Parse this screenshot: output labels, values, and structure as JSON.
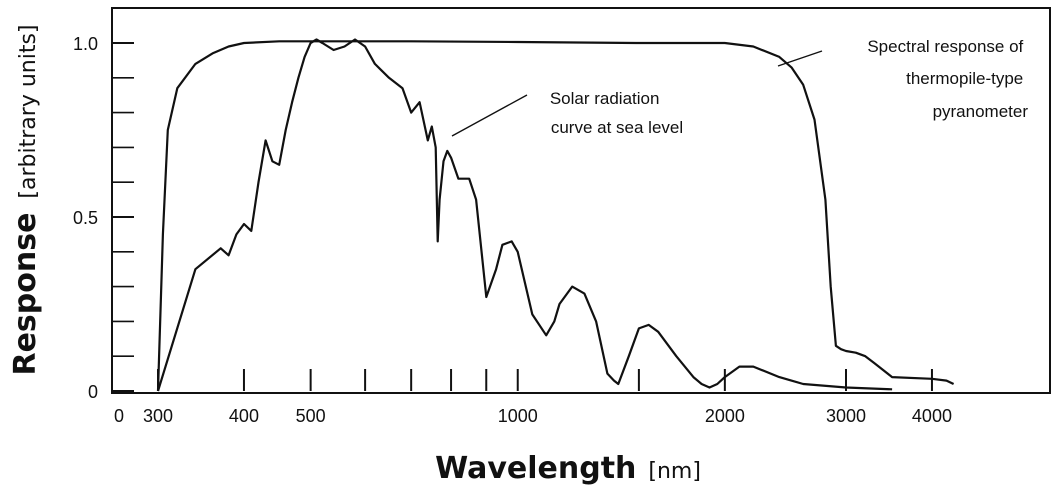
{
  "chart_data": {
    "type": "line",
    "title": "",
    "xlabel": "Wavelength",
    "xlabel_unit": "[nm]",
    "ylabel": "Response",
    "ylabel_unit": "[arbitrary units]",
    "x_scale": "log",
    "xlim": [
      280,
      6000
    ],
    "ylim": [
      0,
      1.0
    ],
    "grid": false,
    "legend": "none",
    "x_ticks_labeled": [
      {
        "value": 300,
        "label": "300"
      },
      {
        "value": 400,
        "label": "400"
      },
      {
        "value": 500,
        "label": "500"
      },
      {
        "value": 1000,
        "label": "1000"
      },
      {
        "value": 2000,
        "label": "2000"
      },
      {
        "value": 3000,
        "label": "3000"
      },
      {
        "value": 4000,
        "label": "4000"
      }
    ],
    "x_origin_label": "0",
    "x_ticks_minor": [
      600,
      700,
      800,
      900,
      1500
    ],
    "y_ticks_labeled": [
      {
        "value": 0,
        "label": "0"
      },
      {
        "value": 0.5,
        "label": "0.5"
      },
      {
        "value": 1.0,
        "label": "1.0"
      }
    ],
    "y_ticks_minor": [
      0.1,
      0.2,
      0.3,
      0.4,
      0.6,
      0.7,
      0.8,
      0.9
    ],
    "series": [
      {
        "id": "solar",
        "annotation": "Solar radiation curve at sea level",
        "annotation_lines": [
          "Solar radiation",
          "curve at sea level"
        ],
        "x": [
          300,
          340,
          370,
          380,
          390,
          400,
          410,
          420,
          430,
          440,
          450,
          460,
          470,
          480,
          490,
          500,
          510,
          520,
          540,
          560,
          580,
          600,
          620,
          650,
          680,
          700,
          720,
          740,
          750,
          760,
          765,
          770,
          780,
          790,
          800,
          820,
          850,
          870,
          900,
          930,
          950,
          980,
          1000,
          1050,
          1100,
          1130,
          1150,
          1200,
          1250,
          1300,
          1350,
          1380,
          1400,
          1450,
          1500,
          1550,
          1600,
          1700,
          1800,
          1850,
          1900,
          1950,
          2000,
          2100,
          2200,
          2400,
          2600,
          3000,
          3500
        ],
        "y": [
          0.0,
          0.35,
          0.41,
          0.39,
          0.45,
          0.48,
          0.46,
          0.6,
          0.72,
          0.66,
          0.65,
          0.75,
          0.83,
          0.9,
          0.96,
          1.0,
          1.01,
          1.0,
          0.98,
          0.99,
          1.01,
          0.99,
          0.94,
          0.9,
          0.87,
          0.8,
          0.83,
          0.72,
          0.76,
          0.7,
          0.43,
          0.55,
          0.66,
          0.69,
          0.67,
          0.61,
          0.61,
          0.55,
          0.27,
          0.35,
          0.42,
          0.43,
          0.4,
          0.22,
          0.16,
          0.2,
          0.25,
          0.3,
          0.28,
          0.2,
          0.05,
          0.03,
          0.02,
          0.1,
          0.18,
          0.19,
          0.17,
          0.1,
          0.04,
          0.02,
          0.01,
          0.02,
          0.04,
          0.07,
          0.07,
          0.04,
          0.02,
          0.01,
          0.005
        ]
      },
      {
        "id": "pyranometer",
        "annotation": "Spectral response of thermopile-type pyranometer",
        "annotation_lines": [
          "Spectral response of",
          "thermopile-type",
          "pyranometer"
        ],
        "x": [
          300,
          305,
          310,
          320,
          340,
          360,
          380,
          400,
          450,
          500,
          700,
          1000,
          1500,
          2000,
          2200,
          2400,
          2500,
          2600,
          2700,
          2800,
          2850,
          2900,
          2950,
          3000,
          3100,
          3200,
          3300,
          3500,
          4000,
          4200,
          4300
        ],
        "y": [
          0.0,
          0.45,
          0.75,
          0.87,
          0.94,
          0.97,
          0.99,
          1.0,
          1.005,
          1.005,
          1.005,
          1.003,
          1.0,
          1.0,
          0.99,
          0.96,
          0.93,
          0.88,
          0.78,
          0.55,
          0.3,
          0.13,
          0.12,
          0.115,
          0.11,
          0.1,
          0.08,
          0.04,
          0.035,
          0.03,
          0.02
        ]
      }
    ]
  }
}
